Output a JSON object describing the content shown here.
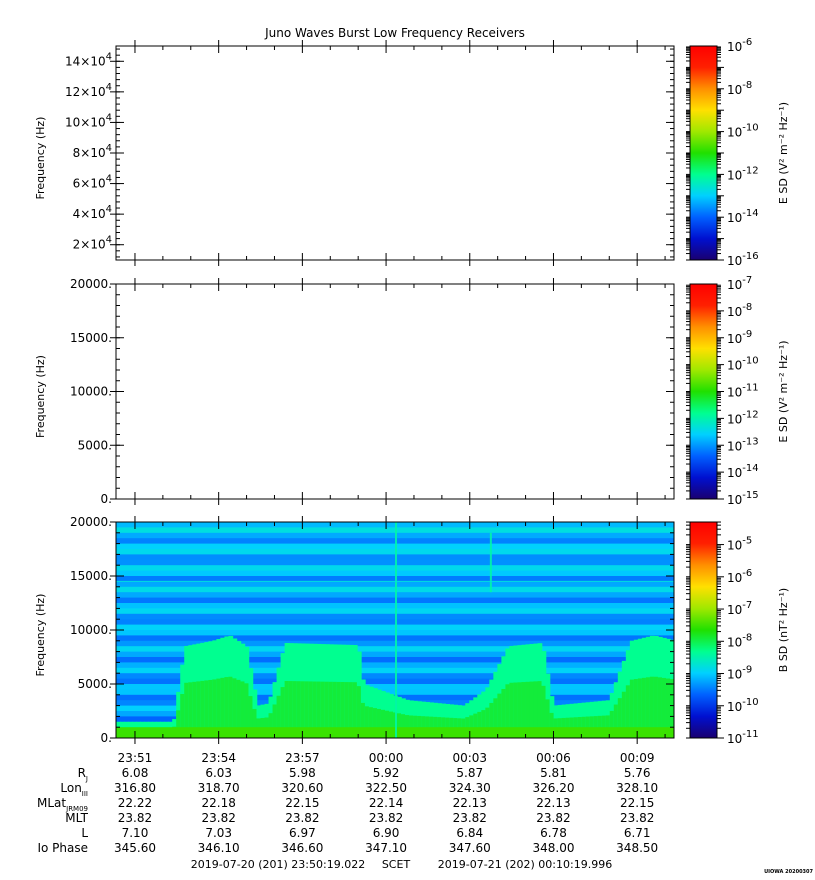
{
  "title": "Juno Waves Burst Low Frequency Receivers",
  "colorscale": [
    "#1a0070",
    "#0010d0",
    "#0060ff",
    "#00d0ff",
    "#00ff90",
    "#20e000",
    "#a0e800",
    "#ffe000",
    "#ff9000",
    "#ff2000",
    "#ff0000"
  ],
  "chart_data": [
    {
      "type": "heatmap",
      "panel": "top",
      "ylabel": "Frequency (Hz)",
      "ylim": [
        10000,
        150000
      ],
      "yticks": [
        {
          "value": 20000,
          "mant": "2",
          "exp": "4"
        },
        {
          "value": 40000,
          "mant": "4",
          "exp": "4"
        },
        {
          "value": 60000,
          "mant": "6",
          "exp": "4"
        },
        {
          "value": 80000,
          "mant": "8",
          "exp": "4"
        },
        {
          "value": 100000,
          "mant": "10",
          "exp": "4"
        },
        {
          "value": 120000,
          "mant": "12",
          "exp": "4"
        },
        {
          "value": 140000,
          "mant": "14",
          "exp": "4"
        }
      ],
      "colorbar": {
        "label": "E SD (V² m⁻² Hz⁻¹)",
        "log_min": -16,
        "log_max": -6,
        "tick_exps": [
          "-6",
          "-8",
          "-10",
          "-12",
          "-14",
          "-16"
        ]
      },
      "data_present": false
    },
    {
      "type": "heatmap",
      "panel": "middle",
      "ylabel": "Frequency (Hz)",
      "ylim": [
        0,
        20000
      ],
      "yticks": [
        {
          "value": 0,
          "label": "0."
        },
        {
          "value": 5000,
          "label": "5000."
        },
        {
          "value": 10000,
          "label": "10000."
        },
        {
          "value": 15000,
          "label": "15000."
        },
        {
          "value": 20000,
          "label": "20000."
        }
      ],
      "colorbar": {
        "label": "E SD (V² m⁻² Hz⁻¹)",
        "log_min": -15,
        "log_max": -7,
        "tick_exps": [
          "-7",
          "-8",
          "-9",
          "-10",
          "-11",
          "-12",
          "-13",
          "-14",
          "-15"
        ]
      },
      "data_present": false
    },
    {
      "type": "heatmap",
      "panel": "bottom",
      "ylabel": "Frequency (Hz)",
      "ylim": [
        0,
        20000
      ],
      "yticks": [
        {
          "value": 0,
          "label": "0."
        },
        {
          "value": 5000,
          "label": "5000."
        },
        {
          "value": 10000,
          "label": "10000."
        },
        {
          "value": 15000,
          "label": "15000."
        },
        {
          "value": 20000,
          "label": "20000."
        }
      ],
      "colorbar": {
        "label": "B SD (nT² Hz⁻¹)",
        "log_min": -11,
        "log_max": -4.3,
        "tick_exps": [
          "-5",
          "-6",
          "-7",
          "-8",
          "-9",
          "-10",
          "-11"
        ]
      },
      "data_present": true,
      "approx_emission_envelope_hz": [
        {
          "t": 0.0,
          "f": 1500
        },
        {
          "t": 0.1,
          "f": 1500
        },
        {
          "t": 0.12,
          "f": 8500
        },
        {
          "t": 0.17,
          "f": 9000
        },
        {
          "t": 0.2,
          "f": 9500
        },
        {
          "t": 0.23,
          "f": 8500
        },
        {
          "t": 0.25,
          "f": 3000
        },
        {
          "t": 0.27,
          "f": 3200
        },
        {
          "t": 0.3,
          "f": 8800
        },
        {
          "t": 0.43,
          "f": 8600
        },
        {
          "t": 0.44,
          "f": 5000
        },
        {
          "t": 0.52,
          "f": 3500
        },
        {
          "t": 0.62,
          "f": 3000
        },
        {
          "t": 0.66,
          "f": 4500
        },
        {
          "t": 0.7,
          "f": 8500
        },
        {
          "t": 0.76,
          "f": 8800
        },
        {
          "t": 0.78,
          "f": 3000
        },
        {
          "t": 0.88,
          "f": 3500
        },
        {
          "t": 0.92,
          "f": 9000
        },
        {
          "t": 0.96,
          "f": 9500
        },
        {
          "t": 1.0,
          "f": 9000
        }
      ],
      "noted_features": [
        {
          "t": 0.67,
          "f_min": 13500,
          "f_max": 19000,
          "desc": "vertical burst"
        },
        {
          "t": 0.5,
          "f_min": 0,
          "f_max": 20000,
          "desc": "vertical stripe"
        },
        {
          "f": 14500,
          "desc": "horizontal line"
        }
      ]
    }
  ],
  "time_axis": {
    "labels": [
      "23:51",
      "23:54",
      "23:57",
      "00:00",
      "00:03",
      "00:06",
      "00:09"
    ],
    "start_min": 0,
    "end_min": 20.0,
    "label_offsets_min": [
      0.68,
      3.68,
      6.68,
      9.68,
      12.68,
      15.68,
      18.68
    ]
  },
  "ephemeris": {
    "rows": [
      {
        "label": "R",
        "sub": "J",
        "values": [
          "6.08",
          "6.03",
          "5.98",
          "5.92",
          "5.87",
          "5.81",
          "5.76"
        ]
      },
      {
        "label": "Lon",
        "sub": "III",
        "values": [
          "316.80",
          "318.70",
          "320.60",
          "322.50",
          "324.30",
          "326.20",
          "328.10"
        ]
      },
      {
        "label": "MLat",
        "sub": "JRM09",
        "values": [
          "22.22",
          "22.18",
          "22.15",
          "22.14",
          "22.13",
          "22.13",
          "22.15"
        ]
      },
      {
        "label": "MLT",
        "sub": "",
        "values": [
          "23.82",
          "23.82",
          "23.82",
          "23.82",
          "23.82",
          "23.82",
          "23.82"
        ]
      },
      {
        "label": "L",
        "sub": "",
        "values": [
          "7.10",
          "7.03",
          "6.97",
          "6.90",
          "6.84",
          "6.78",
          "6.71"
        ]
      },
      {
        "label": "Io Phase",
        "sub": "",
        "values": [
          "345.60",
          "346.10",
          "346.60",
          "347.10",
          "347.60",
          "348.00",
          "348.50"
        ]
      }
    ]
  },
  "footer": {
    "start": "2019-07-20 (201) 23:50:19.022",
    "scet": "SCET",
    "end": "2019-07-21 (202) 00:10:19.996",
    "stamp": "UIOWA 20200307"
  }
}
